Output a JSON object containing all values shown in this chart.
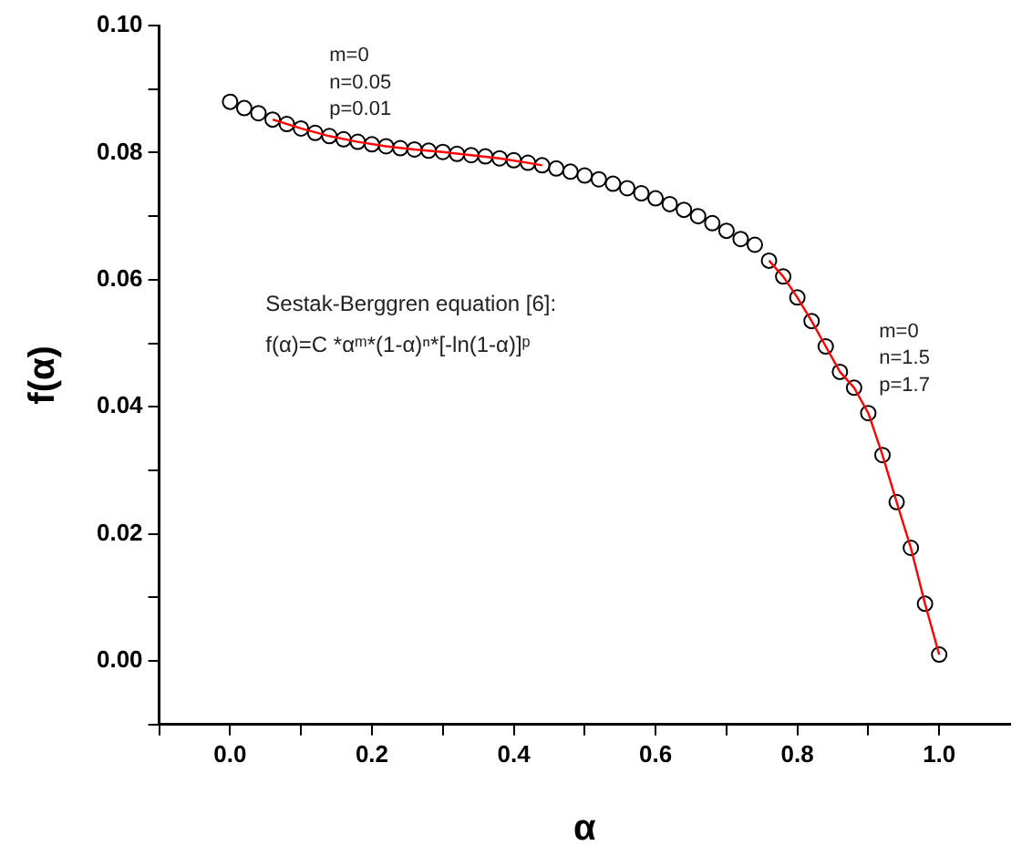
{
  "chart_data": {
    "type": "scatter",
    "xlabel": "α",
    "ylabel": "f(α)",
    "xlim": [
      -0.1,
      1.1
    ],
    "ylim": [
      -0.01,
      0.1
    ],
    "xticks": [
      {
        "value": -0.1,
        "label": null
      },
      {
        "value": 0,
        "label": "0.0"
      },
      {
        "value": 0.1,
        "label": null
      },
      {
        "value": 0.2,
        "label": "0.2"
      },
      {
        "value": 0.3,
        "label": null
      },
      {
        "value": 0.4,
        "label": "0.4"
      },
      {
        "value": 0.5,
        "label": null
      },
      {
        "value": 0.6,
        "label": "0.6"
      },
      {
        "value": 0.7,
        "label": null
      },
      {
        "value": 0.8,
        "label": "0.8"
      },
      {
        "value": 0.9,
        "label": null
      },
      {
        "value": 1,
        "label": "1.0"
      }
    ],
    "yticks": [
      {
        "value": -0.01,
        "label": null
      },
      {
        "value": 0,
        "label": "0.00"
      },
      {
        "value": 0.01,
        "label": null
      },
      {
        "value": 0.02,
        "label": "0.02"
      },
      {
        "value": 0.03,
        "label": null
      },
      {
        "value": 0.04,
        "label": "0.04"
      },
      {
        "value": 0.05,
        "label": null
      },
      {
        "value": 0.06,
        "label": "0.06"
      },
      {
        "value": 0.07,
        "label": null
      },
      {
        "value": 0.08,
        "label": "0.08"
      },
      {
        "value": 0.09,
        "label": null
      },
      {
        "value": 0.1,
        "label": "0.10"
      }
    ],
    "grid": false,
    "legend": false,
    "series": [
      {
        "color": "#000000",
        "marker": "circle",
        "x": [
          0,
          0.02,
          0.04,
          0.06,
          0.08,
          0.1,
          0.12,
          0.14,
          0.16,
          0.18,
          0.2,
          0.22,
          0.24,
          0.26,
          0.28,
          0.3,
          0.32,
          0.34,
          0.36,
          0.38,
          0.4,
          0.42,
          0.44,
          0.46,
          0.48,
          0.5,
          0.52,
          0.54,
          0.56,
          0.58,
          0.6,
          0.62,
          0.64,
          0.66,
          0.68,
          0.7,
          0.72,
          0.74,
          0.76,
          0.78,
          0.8,
          0.82,
          0.84,
          0.86,
          0.88,
          0.9,
          0.92,
          0.94,
          0.96,
          0.98,
          1
        ],
        "values": [
          0.088,
          0.087,
          0.0862,
          0.0852,
          0.0845,
          0.0838,
          0.0831,
          0.0826,
          0.0821,
          0.0817,
          0.0813,
          0.081,
          0.0807,
          0.0805,
          0.0803,
          0.0801,
          0.0798,
          0.0796,
          0.0794,
          0.0791,
          0.0788,
          0.0784,
          0.078,
          0.0775,
          0.077,
          0.0764,
          0.0758,
          0.0751,
          0.0744,
          0.0736,
          0.0728,
          0.0719,
          0.071,
          0.07,
          0.0689,
          0.0677,
          0.0664,
          0.0655,
          0.063,
          0.0605,
          0.0572,
          0.0535,
          0.0495,
          0.0455,
          0.043,
          0.039,
          0.0324,
          0.025,
          0.0178,
          0.009,
          0.001
        ]
      },
      {
        "type": "line",
        "color": "#ff0000",
        "marker": "none",
        "x": [
          0.06,
          0.1,
          0.14,
          0.18,
          0.22,
          0.26,
          0.3,
          0.34,
          0.38,
          0.42,
          0.44
        ],
        "values": [
          0.0852,
          0.0838,
          0.0826,
          0.0817,
          0.081,
          0.0805,
          0.0801,
          0.0796,
          0.0791,
          0.0784,
          0.078
        ]
      },
      {
        "type": "line",
        "color": "#ff0000",
        "marker": "none",
        "x": [
          0.76,
          0.78,
          0.8,
          0.82,
          0.84,
          0.86,
          0.88,
          0.9,
          0.92,
          0.94,
          0.96,
          0.98,
          1
        ],
        "values": [
          0.063,
          0.0605,
          0.0572,
          0.0535,
          0.0495,
          0.0455,
          0.043,
          0.039,
          0.0324,
          0.025,
          0.0178,
          0.009,
          0.001
        ]
      }
    ],
    "annotations": [
      "m=0",
      "n=0.05",
      "p=0.01",
      "Sestak-Berggren equation [6]:",
      "f(α)=C *αᵐ*(1-α)ⁿ*[-ln(1-α)]ᵖ",
      "m=0",
      "n=1.5",
      "p=1.7"
    ]
  }
}
